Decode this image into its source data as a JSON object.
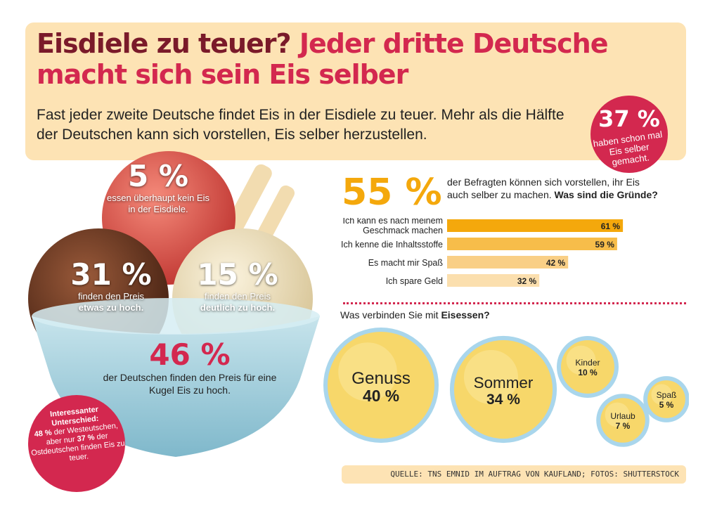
{
  "header": {
    "title_part1": "Eisdiele zu teuer?",
    "title_part2": "Jeder dritte Deutsche macht sich sein Eis selber",
    "subtitle": "Fast jeder zweite Deutsche findet Eis in der Eisdiele zu teuer. Mehr als die Hälfte der Deutschen kann sich vorstellen, Eis selber herzustellen."
  },
  "badge37": {
    "value": "37 %",
    "text": "haben schon mal Eis selber gemacht."
  },
  "scoops": {
    "s5": {
      "value": "5 %",
      "text": "essen überhaupt kein Eis in der Eisdiele."
    },
    "s31": {
      "value": "31 %",
      "text1": "finden den Preis",
      "text2": "etwas zu hoch."
    },
    "s15": {
      "value": "15 %",
      "text1": "finden den Preis",
      "text2": "deutlich zu hoch."
    },
    "s46": {
      "value": "46 %",
      "text": "der Deutschen finden den Preis für eine Kugel Eis zu hoch."
    }
  },
  "interesting": {
    "heading": "Interessanter Unterschied:",
    "part1": "48 %",
    "part2": "der Westeutschen, aber nur",
    "part3": "37 %",
    "part4": "der Ostdeutschen finden Eis zu teuer."
  },
  "reasons": {
    "value": "55 %",
    "text": "der Befragten können sich vorstellen, ihr Eis auch selber zu machen.",
    "question": "Was sind die Gründe?"
  },
  "associations_label_pre": "Was verbinden Sie mit",
  "associations_label_bold": "Eisessen?",
  "source": "QUELLE: TNS EMNID IM AUFTRAG VON KAUFLAND; FOTOS: SHUTTERSTOCK",
  "colors": {
    "orange": "#f4a80c",
    "orange_mid": "#f7bd4a",
    "orange_light": "#f9cf86",
    "orange_pale": "#fbdfae",
    "red": "#d3284f",
    "circle_blue": "#a9d6ec"
  },
  "chart_data": [
    {
      "type": "bar",
      "orientation": "horizontal",
      "categories": [
        "Ich kann es nach meinem Geschmack machen",
        "Ich kenne die Inhaltsstoffe",
        "Es macht mir Spaß",
        "Ich spare Geld"
      ],
      "category_lines": [
        [
          "Ich kann es nach meinem",
          "Geschmack machen"
        ],
        [
          "Ich kenne die Inhaltsstoffe"
        ],
        [
          "Es macht mir Spaß"
        ],
        [
          "Ich spare Geld"
        ]
      ],
      "values": [
        61,
        59,
        42,
        32
      ],
      "labels": [
        "61 %",
        "59 %",
        "42 %",
        "32 %"
      ],
      "unit": "%",
      "xlim": [
        0,
        100
      ]
    },
    {
      "type": "bubble",
      "categories": [
        "Genuss",
        "Sommer",
        "Kinder",
        "Urlaub",
        "Spaß"
      ],
      "values": [
        40,
        34,
        10,
        7,
        5
      ],
      "labels": [
        "40 %",
        "34 %",
        "10 %",
        "7 %",
        "5 %"
      ],
      "unit": "%"
    }
  ]
}
